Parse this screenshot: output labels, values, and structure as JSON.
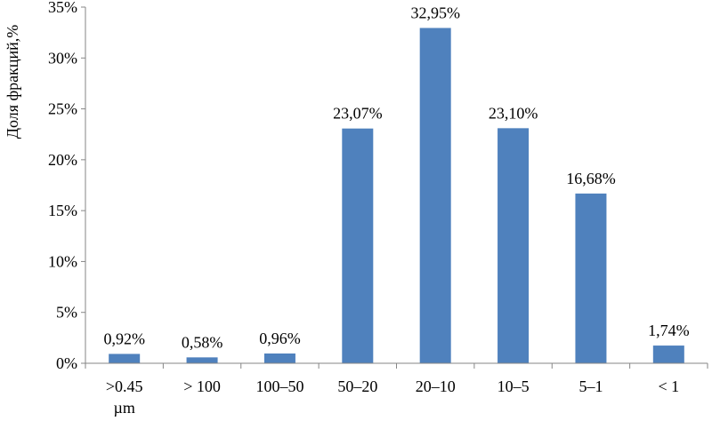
{
  "chart_data": {
    "type": "bar",
    "title": "",
    "xlabel": "",
    "ylabel": "Доля фракций,%",
    "ylim": [
      0,
      35
    ],
    "yticks": [
      "0%",
      "5%",
      "10%",
      "15%",
      "20%",
      "25%",
      "30%",
      "35%"
    ],
    "categories": [
      ">0.45 µm",
      "> 100",
      "100–50",
      "50–20",
      "20–10",
      "10–5",
      "5–1",
      "< 1"
    ],
    "values": [
      0.92,
      0.58,
      0.96,
      23.07,
      32.95,
      23.1,
      16.68,
      1.74
    ],
    "data_labels": [
      "0,92%",
      "0,58%",
      "0,96%",
      "23,07%",
      "32,95%",
      "23,10%",
      "16,68%",
      "1,74%"
    ],
    "grid": false,
    "legend": "none",
    "colors": {
      "bar": "#4f81bd",
      "axis": "#868686"
    }
  }
}
